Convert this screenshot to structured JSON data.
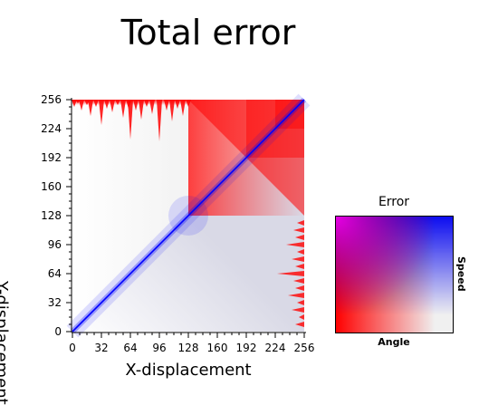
{
  "chart_data": {
    "type": "heatmap",
    "title": "Total error",
    "xlabel": "X-displacement",
    "ylabel": "Y-displacement",
    "xlim": [
      0,
      256
    ],
    "ylim": [
      0,
      256
    ],
    "xticks": [
      0,
      32,
      64,
      96,
      128,
      160,
      192,
      224,
      256
    ],
    "yticks": [
      0,
      32,
      64,
      96,
      128,
      160,
      192,
      224,
      256
    ],
    "diagonal": {
      "x": [
        0,
        256
      ],
      "y": [
        0,
        256
      ]
    },
    "legend": {
      "title": "Error",
      "xlabel": "Angle",
      "ylabel": "Speed"
    }
  },
  "colors": {
    "low_error": "#f0f0f0",
    "angle_error": "#ff0000",
    "speed_error": "#0000ff",
    "combined_error": "#ff00ff"
  }
}
